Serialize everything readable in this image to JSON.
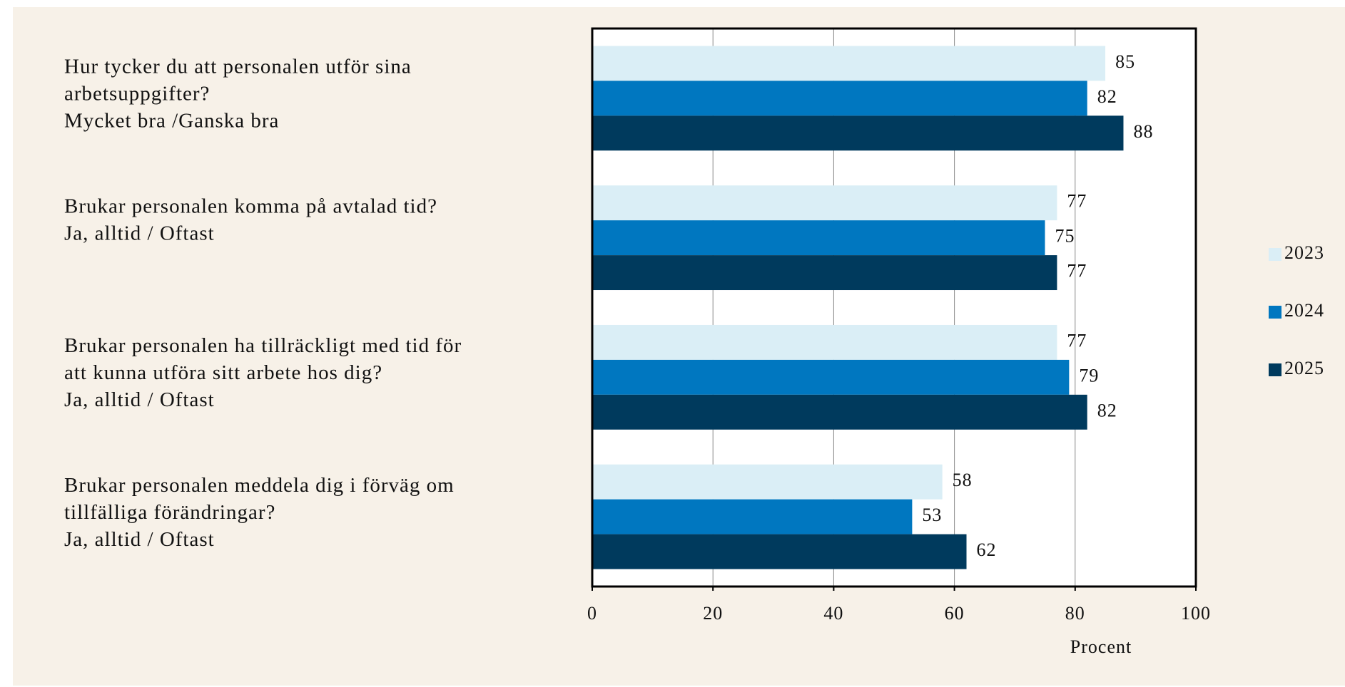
{
  "chart_data": {
    "type": "hbar",
    "categories": [
      [
        "Hur tycker du att personalen utför sina",
        "arbetsuppgifter?",
        "Mycket bra /Ganska bra"
      ],
      [
        "Brukar personalen komma på avtalad tid?",
        "Ja, alltid / Oftast"
      ],
      [
        "Brukar personalen ha tillräckligt med tid för",
        "att kunna utföra sitt arbete hos dig?",
        "Ja, alltid / Oftast"
      ],
      [
        "Brukar personalen meddela dig i förväg om",
        "tillfälliga förändringar?",
        "Ja, alltid / Oftast"
      ]
    ],
    "series": [
      {
        "name": "2023",
        "color": "#daeef6",
        "values": [
          85,
          77,
          77,
          58
        ]
      },
      {
        "name": "2024",
        "color": "#0077c0",
        "values": [
          82,
          75,
          79,
          53
        ]
      },
      {
        "name": "2025",
        "color": "#003a5d",
        "values": [
          88,
          77,
          82,
          62
        ]
      }
    ],
    "xlabel": "Procent",
    "xlim": [
      0,
      100
    ],
    "xticks": [
      0,
      20,
      40,
      60,
      80,
      100
    ],
    "grid": true,
    "legend": "right"
  }
}
